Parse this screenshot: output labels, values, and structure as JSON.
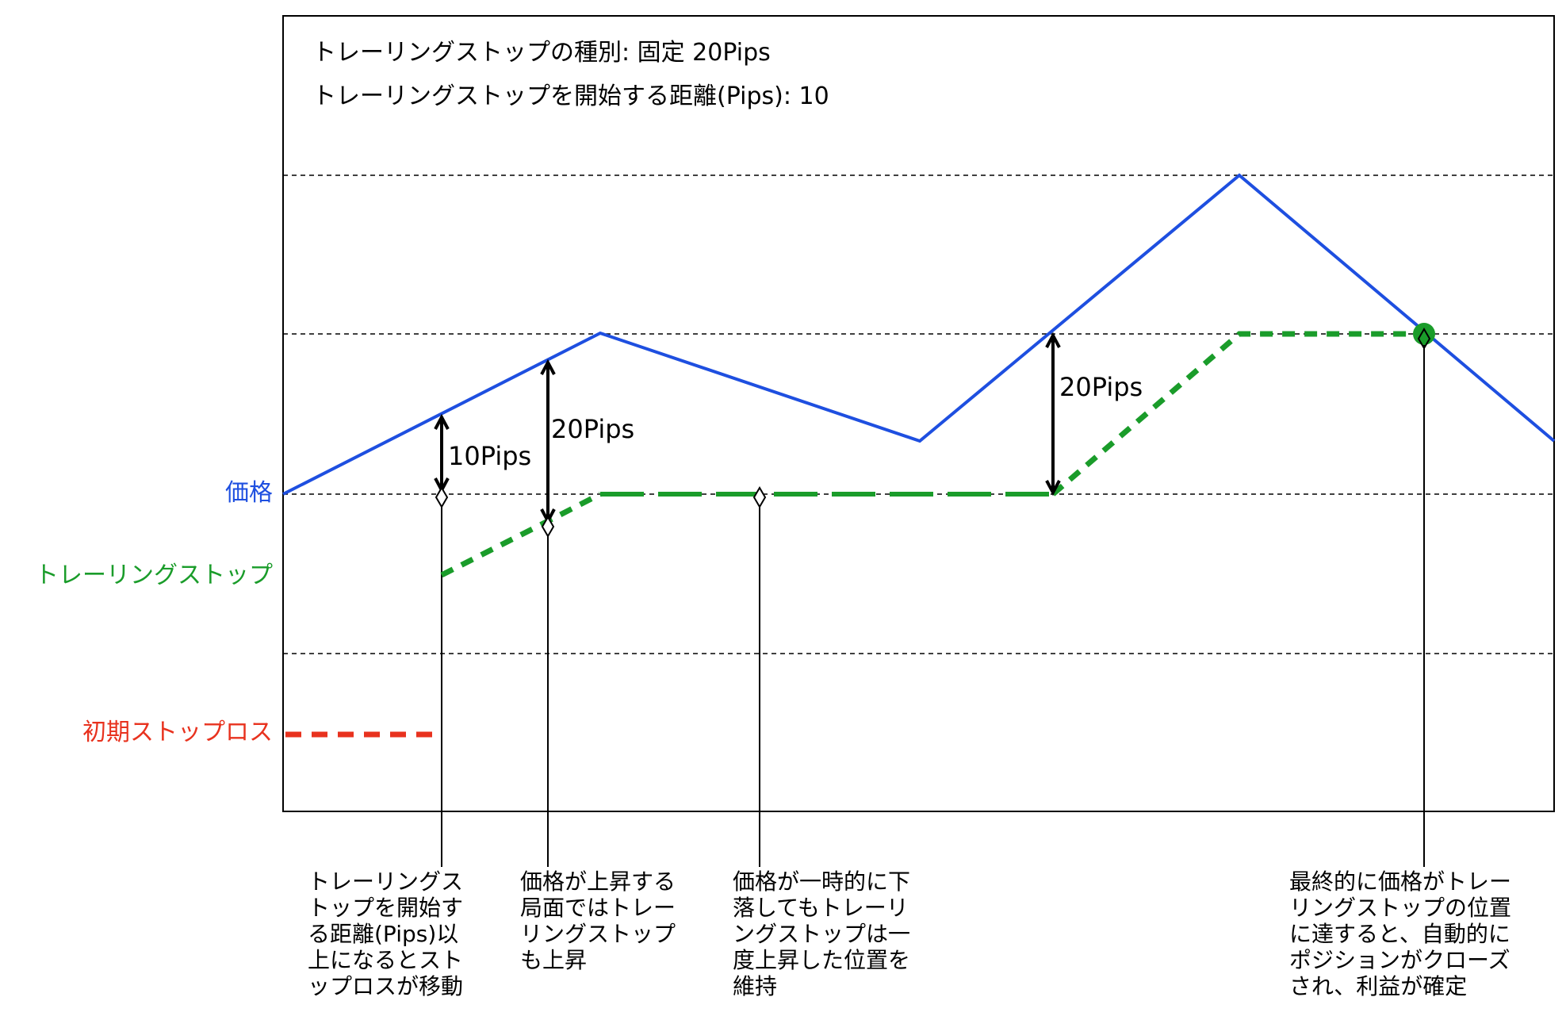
{
  "header": {
    "type_line": "トレーリングストップの種別: 固定 20Pips",
    "start_line": "トレーリングストップを開始する距離(Pips): 10"
  },
  "labels": {
    "price": "価格",
    "trailing_stop": "トレーリングストップ",
    "initial_stop": "初期ストップロス"
  },
  "measures": {
    "ten_pips": "10Pips",
    "twenty_pips_a": "20Pips",
    "twenty_pips_b": "20Pips"
  },
  "captions": {
    "c1": "トレーリングス\nトップを開始す\nる距離(Pips)以\n上になるとスト\nップロスが移動",
    "c2": "価格が上昇する\n局面ではトレー\nリングストップ\nも上昇",
    "c3": "価格が一時的に下\n落してもトレーリ\nングストップは一\n度上昇した位置を\n維持",
    "c4": "最終的に価格がトレー\nリングストップの位置\nに達すると、自動的に\nポジションがクローズ\nされ、利益が確定"
  },
  "colors": {
    "price_line": "#1e4fe0",
    "trailing_stop": "#1a9c2a",
    "initial_stop": "#e8321e",
    "price_label": "#1e4fe0",
    "trailing_label": "#1a9c2a",
    "initial_label": "#e8321e"
  }
}
